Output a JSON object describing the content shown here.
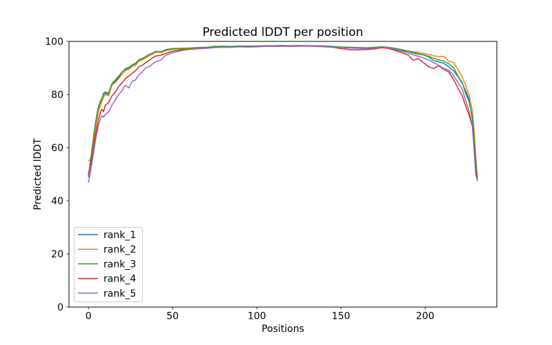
{
  "chart_data": {
    "type": "line",
    "title": "Predicted lDDT per position",
    "xlabel": "Positions",
    "ylabel": "Predicted lDDT",
    "x_ticks": [
      0,
      50,
      100,
      150,
      200
    ],
    "y_ticks": [
      0,
      20,
      40,
      60,
      80,
      100
    ],
    "xlim": [
      -11.55,
      242.55
    ],
    "ylim": [
      0,
      100
    ],
    "grid": false,
    "legend_position": "lower left",
    "line_width": 1.5,
    "x": [
      0,
      1,
      2,
      3,
      4,
      5,
      6,
      7,
      8,
      9,
      10,
      12,
      14,
      16,
      18,
      20,
      22,
      24,
      26,
      28,
      30,
      32,
      34,
      36,
      38,
      40,
      43,
      46,
      50,
      55,
      60,
      65,
      70,
      75,
      80,
      85,
      90,
      95,
      100,
      105,
      110,
      115,
      120,
      125,
      130,
      135,
      140,
      145,
      150,
      155,
      160,
      165,
      170,
      174,
      178,
      182,
      186,
      190,
      193,
      196,
      199,
      202,
      205,
      208,
      211,
      214,
      217,
      220,
      222,
      224,
      226,
      228,
      229,
      230,
      231
    ],
    "series": [
      {
        "name": "rank_1",
        "color": "#1f77b4",
        "values": [
          49,
          53,
          58,
          63,
          68,
          72,
          75,
          77,
          78.5,
          80,
          80.5,
          80,
          84,
          85,
          86.5,
          88.5,
          89.5,
          90,
          91,
          91.5,
          93,
          93.5,
          94.2,
          95,
          95.5,
          96.3,
          96,
          96.8,
          97.2,
          97.3,
          97.4,
          97.6,
          97.7,
          98,
          98.1,
          98,
          98.2,
          98.1,
          98.2,
          98.3,
          98.3,
          98.4,
          98.3,
          98.4,
          98.4,
          98.3,
          98.2,
          98,
          97.8,
          97.6,
          97.5,
          97.3,
          97.5,
          97.8,
          97.7,
          97.2,
          96.6,
          96.2,
          95.6,
          95.2,
          94.9,
          94.2,
          92.8,
          92.3,
          91.8,
          90.5,
          88.8,
          86.3,
          84.2,
          81.5,
          78.5,
          71,
          64,
          55,
          48.5
        ]
      },
      {
        "name": "rank_2",
        "color": "#ff7f0e",
        "values": [
          55,
          55.5,
          57.5,
          62,
          66,
          70,
          73.5,
          76,
          77.5,
          79,
          80,
          79.5,
          83.5,
          84.5,
          86,
          87.8,
          89,
          89.5,
          90.5,
          91,
          92.5,
          93,
          93.8,
          94.6,
          95.2,
          96,
          95.8,
          96.5,
          97,
          97.2,
          97.3,
          97.5,
          97.6,
          97.9,
          98,
          97.9,
          98.1,
          98,
          98.1,
          98.2,
          98.2,
          98.3,
          98.2,
          98.3,
          98.3,
          98.2,
          98.1,
          98,
          97.9,
          97.7,
          97.6,
          97.5,
          97.7,
          98,
          97.8,
          97.3,
          96.8,
          96.4,
          96.1,
          95.9,
          95.5,
          95.1,
          94.6,
          94.3,
          94.4,
          92.6,
          92,
          88.8,
          86.6,
          83.5,
          80,
          74,
          67,
          57,
          48.5
        ]
      },
      {
        "name": "rank_3",
        "color": "#2ca02c",
        "values": [
          49.5,
          54,
          59,
          64,
          68.5,
          72.5,
          75.5,
          77.5,
          78.5,
          80.5,
          81,
          80.5,
          84.2,
          85.5,
          87,
          88.5,
          89.8,
          90.2,
          91.2,
          91.8,
          93.2,
          93.6,
          94.3,
          95.1,
          95.6,
          96.2,
          96.1,
          96.9,
          97.3,
          97.4,
          97.5,
          97.7,
          97.8,
          98.1,
          98.2,
          98.1,
          98.3,
          98.2,
          98.3,
          98.4,
          98.4,
          98.5,
          98.4,
          98.5,
          98.4,
          98.4,
          98.3,
          98.1,
          97.9,
          97.8,
          97.7,
          97.6,
          97.8,
          98,
          97.8,
          97.4,
          96.9,
          96.3,
          95.8,
          95.4,
          95,
          94.4,
          93.7,
          93,
          92.6,
          91.6,
          90,
          86.4,
          84.5,
          80.5,
          77.5,
          72,
          65,
          56,
          48
        ]
      },
      {
        "name": "rank_4",
        "color": "#d62728",
        "values": [
          50,
          53,
          55.5,
          60,
          64,
          67.5,
          70.5,
          73,
          74.5,
          73.5,
          76,
          77,
          79.5,
          81,
          83,
          84.5,
          86,
          87,
          88,
          89,
          90.5,
          91,
          92,
          92.8,
          93.8,
          94.5,
          94.8,
          95.5,
          96.3,
          96.8,
          97,
          97.2,
          97.4,
          97.7,
          97.8,
          97.8,
          98,
          97.9,
          98,
          98.1,
          98.1,
          98.2,
          98.1,
          98.2,
          98.2,
          98.1,
          98,
          97.8,
          97.3,
          96.9,
          96.8,
          96.9,
          97.2,
          97.6,
          97.4,
          96.6,
          95.8,
          94.8,
          92.9,
          93.5,
          92,
          90.5,
          89.8,
          90.8,
          89.5,
          88.5,
          85.5,
          81.8,
          79.5,
          75.8,
          72.5,
          68,
          61,
          52,
          48
        ]
      },
      {
        "name": "rank_5",
        "color": "#9467bd",
        "values": [
          47,
          50,
          54,
          58,
          62,
          65.5,
          68.5,
          70.5,
          72,
          71.5,
          72.5,
          73.5,
          76,
          78,
          80,
          81.5,
          83.5,
          82.5,
          85,
          85.5,
          87.5,
          88.5,
          90,
          90.5,
          91.5,
          92.3,
          93,
          94.8,
          95.8,
          96.5,
          97,
          97.2,
          97.4,
          97.7,
          97.9,
          97.8,
          98,
          97.9,
          98.1,
          98.1,
          98.2,
          98.2,
          98.2,
          98.3,
          98.2,
          98.2,
          98.1,
          97.9,
          97.7,
          97.5,
          97.4,
          97.3,
          97.5,
          97.8,
          97.6,
          97,
          96.3,
          95.6,
          94.9,
          94.4,
          93.8,
          93,
          92,
          91,
          89.8,
          89.2,
          87,
          84,
          82,
          77.9,
          74,
          68.5,
          60,
          50,
          47.5
        ]
      }
    ]
  }
}
